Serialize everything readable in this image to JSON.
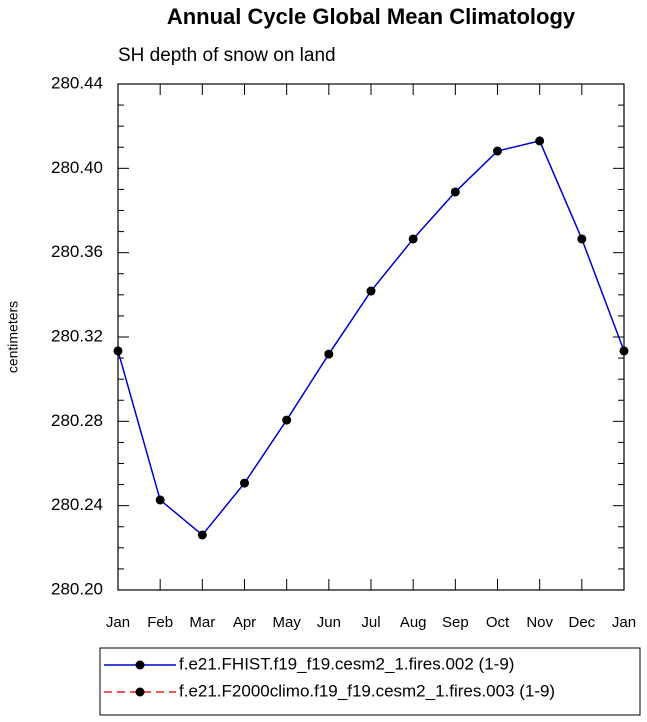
{
  "chart_data": {
    "type": "line",
    "title": "Annual Cycle Global Mean Climatology",
    "subtitle": "SH depth of snow on land",
    "y_label": "centimeters",
    "categories": [
      "Jan",
      "Feb",
      "Mar",
      "Apr",
      "May",
      "Jun",
      "Jul",
      "Aug",
      "Sep",
      "Oct",
      "Nov",
      "Dec",
      "Jan"
    ],
    "series": [
      {
        "name": "f.e21.FHIST.f19_f19.cesm2_1.fires.002 (1-9)",
        "color": "#0000cc",
        "dash": "solid",
        "values": [
          280.3134,
          280.2427,
          280.2261,
          280.2507,
          280.2806,
          280.3119,
          280.3418,
          280.3665,
          280.3888,
          280.4082,
          280.413,
          280.3665,
          280.3134
        ]
      },
      {
        "name": "f.e21.F2000climo.f19_f19.cesm2_1.fires.003 (1-9)",
        "color": "#e8201c",
        "dash": "dashed",
        "values": [
          null,
          null,
          null,
          null,
          null,
          null,
          null,
          null,
          null,
          null,
          null,
          null,
          null
        ]
      }
    ],
    "ylim": [
      280.2,
      280.44
    ],
    "yticks": [
      {
        "value": 280.2,
        "label": "280.20"
      },
      {
        "value": 280.24,
        "label": "280.24"
      },
      {
        "value": 280.28,
        "label": "280.28"
      },
      {
        "value": 280.32,
        "label": "280.32"
      },
      {
        "value": 280.36,
        "label": "280.36"
      },
      {
        "value": 280.4,
        "label": "280.40"
      },
      {
        "value": 280.44,
        "label": "280.44"
      }
    ],
    "yminorticks": [
      280.21,
      280.22,
      280.23,
      280.25,
      280.26,
      280.27,
      280.29,
      280.3,
      280.31,
      280.33,
      280.34,
      280.35,
      280.37,
      280.38,
      280.39,
      280.41,
      280.42,
      280.43
    ],
    "grid": false
  }
}
